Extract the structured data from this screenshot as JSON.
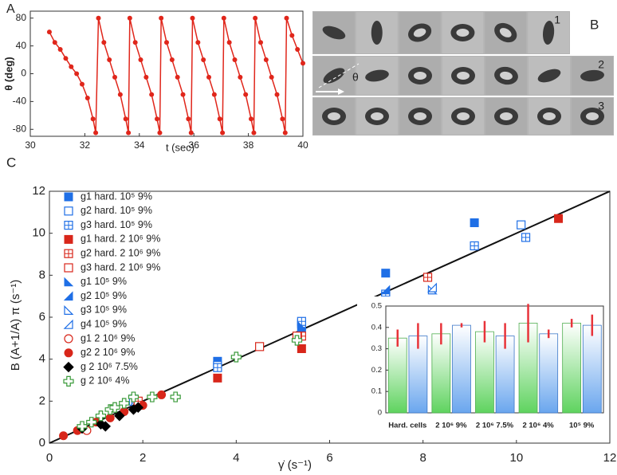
{
  "chart_data": [
    {
      "type": "line",
      "label": "A",
      "xlabel": "t (sec)",
      "ylabel": "θ (deg)",
      "xlim": [
        30,
        40
      ],
      "xticks": [
        30,
        32,
        34,
        36,
        38,
        40
      ],
      "ylim": [
        -90,
        90
      ],
      "yticks": [
        -80,
        -40,
        0,
        40,
        80
      ],
      "color": "#e0261b",
      "markers": true,
      "x": [
        30.7,
        30.9,
        31.1,
        31.3,
        31.5,
        31.7,
        31.9,
        32.1,
        32.3,
        32.4,
        32.5,
        32.7,
        32.9,
        33.1,
        33.3,
        33.5,
        33.6,
        33.65,
        33.85,
        34.05,
        34.25,
        34.45,
        34.65,
        34.75,
        34.8,
        35.0,
        35.2,
        35.4,
        35.6,
        35.8,
        35.9,
        35.95,
        36.15,
        36.35,
        36.55,
        36.75,
        36.95,
        37.05,
        37.1,
        37.3,
        37.5,
        37.7,
        37.9,
        38.1,
        38.2,
        38.25,
        38.45,
        38.65,
        38.85,
        39.05,
        39.25,
        39.35,
        39.4,
        39.6,
        39.8,
        40.0
      ],
      "values": [
        60,
        45,
        35,
        22,
        10,
        0,
        -15,
        -35,
        -65,
        -85,
        80,
        45,
        20,
        -5,
        -30,
        -65,
        -85,
        80,
        45,
        20,
        -5,
        -30,
        -65,
        -85,
        80,
        45,
        20,
        -5,
        -30,
        -65,
        -85,
        80,
        45,
        20,
        -5,
        -30,
        -65,
        -85,
        80,
        45,
        20,
        -5,
        -30,
        -65,
        -85,
        80,
        45,
        20,
        -5,
        -30,
        -65,
        -85,
        80,
        55,
        35,
        15
      ]
    },
    {
      "type": "scatter",
      "label": "C",
      "xlabel": "γ̇ (s⁻¹)",
      "ylabel": "B (A+1/A) π (s⁻¹)",
      "xlim": [
        0,
        12
      ],
      "xticks": [
        0,
        2,
        4,
        6,
        8,
        10,
        12
      ],
      "ylim": [
        0,
        12
      ],
      "yticks": [
        0,
        2,
        4,
        6,
        8,
        10,
        12
      ],
      "fit_line": {
        "x": [
          0,
          12
        ],
        "values": [
          0,
          12
        ],
        "color": "#111111"
      },
      "series": [
        {
          "name": "g1 hard. 10⁵ 9%",
          "color": "#1f6fe6",
          "marker": "square",
          "x": [
            1.8,
            3.6,
            5.4,
            7.2,
            9.1
          ],
          "values": [
            2.1,
            3.9,
            5.5,
            8.1,
            10.5
          ]
        },
        {
          "name": "g2 hard. 10⁵  9%",
          "color": "#1f6fe6",
          "marker": "square-open",
          "x": [
            1.8,
            3.6,
            5.4,
            7.2,
            10.1
          ],
          "values": [
            2.0,
            3.7,
            5.7,
            7.1,
            10.4
          ]
        },
        {
          "name": "g3 hard. 10⁵ 9%",
          "color": "#1f6fe6",
          "marker": "square-grid",
          "x": [
            1.85,
            3.6,
            5.4,
            7.2,
            9.1,
            10.2
          ],
          "values": [
            1.9,
            3.6,
            5.8,
            7.0,
            9.4,
            9.8
          ]
        },
        {
          "name": "g1 hard. 2 10⁶ 9%",
          "color": "#d8261a",
          "marker": "square",
          "x": [
            1.9,
            3.6,
            5.4,
            10.9
          ],
          "values": [
            1.9,
            3.1,
            4.5,
            10.7
          ]
        },
        {
          "name": "g2 hard. 2 10⁶ 9%",
          "color": "#d8261a",
          "marker": "square-grid",
          "x": [
            1.9,
            5.4,
            8.1
          ],
          "values": [
            2.0,
            5.1,
            7.9
          ]
        },
        {
          "name": "g3 hard. 2 10⁶ 9%",
          "color": "#d8261a",
          "marker": "square-open",
          "x": [
            4.5,
            5.3
          ],
          "values": [
            4.6,
            5.1
          ]
        },
        {
          "name": "g1 10⁵ 9%",
          "color": "#1f6fe6",
          "marker": "tri-right",
          "x": [
            5.4,
            7.2
          ],
          "values": [
            5.6,
            6.8
          ]
        },
        {
          "name": "g2 10⁵ 9%",
          "color": "#1f6fe6",
          "marker": "tri-left",
          "x": [
            7.2
          ],
          "values": [
            7.3
          ]
        },
        {
          "name": "g3 10⁵ 9%",
          "color": "#1f6fe6",
          "marker": "tri-open",
          "x": [
            7.2,
            8.2
          ],
          "values": [
            6.6,
            7.3
          ]
        },
        {
          "name": "g4 10⁵ 9%",
          "color": "#1f6fe6",
          "marker": "tri-open-left",
          "x": [
            7.2,
            8.2
          ],
          "values": [
            6.7,
            7.4
          ]
        },
        {
          "name": "g1 2 10⁶ 9%",
          "color": "#d8261a",
          "marker": "circle-open",
          "x": [
            0.8
          ],
          "values": [
            0.6
          ]
        },
        {
          "name": "g2 2 10⁶ 9%",
          "color": "#d8261a",
          "marker": "circle",
          "x": [
            0.3,
            0.6,
            1.0,
            1.3,
            1.6,
            2.0,
            2.4
          ],
          "values": [
            0.35,
            0.6,
            1.0,
            1.2,
            1.5,
            1.8,
            2.3
          ]
        },
        {
          "name": "g 2 10⁶ 7.5%",
          "color": "#000000",
          "marker": "diamond",
          "x": [
            0.7,
            1.1,
            1.2,
            1.5,
            1.8,
            1.9
          ],
          "values": [
            0.7,
            0.9,
            0.8,
            1.3,
            1.6,
            1.7
          ]
        },
        {
          "name": "g 2 10⁶ 4%",
          "color": "#3a9a3a",
          "marker": "plus-open",
          "x": [
            0.7,
            0.9,
            1.1,
            1.3,
            1.4,
            1.6,
            1.8,
            2.2,
            2.7,
            4.0,
            5.3
          ],
          "values": [
            0.8,
            1.0,
            1.3,
            1.6,
            1.7,
            1.9,
            2.2,
            2.2,
            2.2,
            4.1,
            4.9
          ]
        }
      ]
    },
    {
      "type": "bar",
      "categories": [
        "Hard. cells",
        "2 10⁶ 9%",
        "2 10⁶ 7.5%",
        "2 10⁶ 4%",
        "10⁵ 9%"
      ],
      "ylim": [
        0,
        0.5
      ],
      "yticks": [
        0,
        0.1,
        0.2,
        0.3,
        0.4,
        0.5
      ],
      "error_color": "#e8333a",
      "series": [
        {
          "color": "#5fd35f",
          "values": [
            0.35,
            0.37,
            0.38,
            0.42,
            0.42
          ],
          "errors": [
            0.04,
            0.05,
            0.05,
            0.09,
            0.02
          ]
        },
        {
          "color": "#6aa6ee",
          "values": [
            0.36,
            0.41,
            0.36,
            0.37,
            0.41
          ],
          "errors": [
            0.06,
            0.01,
            0.06,
            0.02,
            0.05
          ]
        }
      ]
    }
  ],
  "panel_b": {
    "label": "B",
    "rows": [
      "1",
      "2",
      "3"
    ],
    "angle_label": "θ"
  }
}
